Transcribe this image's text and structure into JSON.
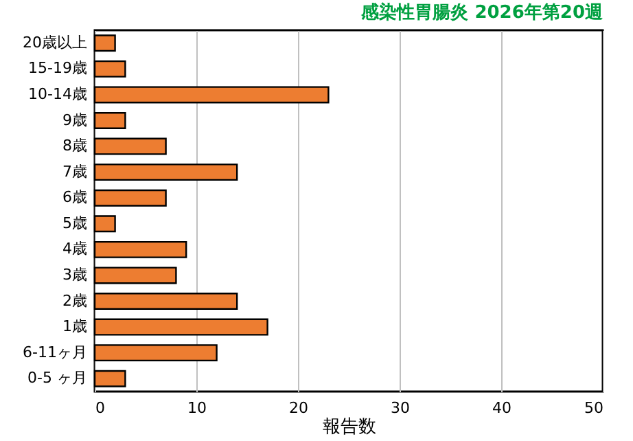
{
  "chart_data": {
    "type": "bar",
    "orientation": "horizontal",
    "title": "感染性胃腸炎 2026年第20週",
    "xlabel": "報告数",
    "categories": [
      "20歳以上",
      "15-19歳",
      "10-14歳",
      "9歳",
      "8歳",
      "7歳",
      "6歳",
      "5歳",
      "4歳",
      "3歳",
      "2歳",
      "1歳",
      "6-11ヶ月",
      "0-5 ヶ月"
    ],
    "values": [
      2,
      3,
      23,
      3,
      7,
      14,
      7,
      2,
      9,
      8,
      14,
      17,
      12,
      3
    ],
    "color": "#ed7d31",
    "xlim": [
      0,
      50
    ],
    "xticks": [
      0,
      10,
      20,
      30,
      40,
      50
    ],
    "grid": "x"
  }
}
